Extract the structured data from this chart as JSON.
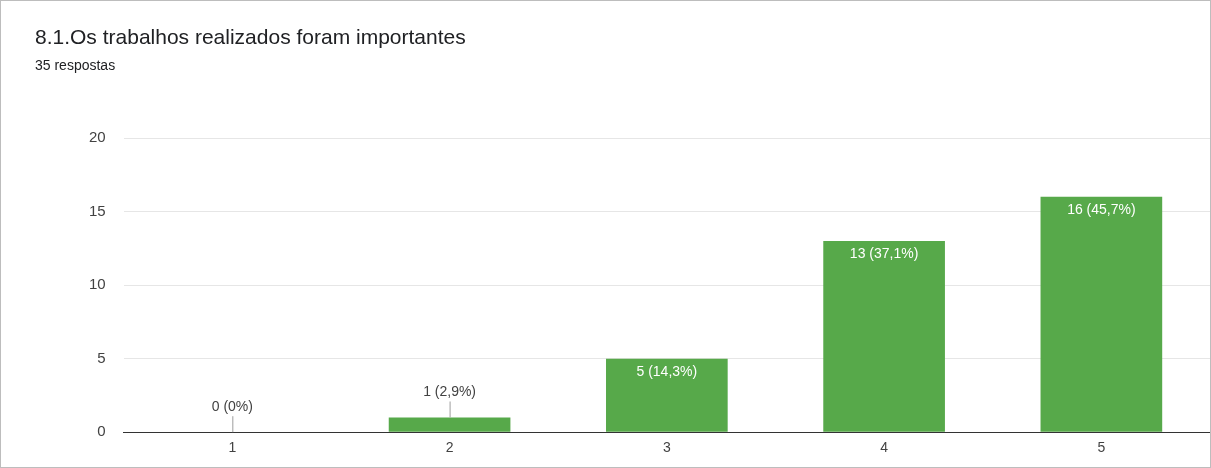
{
  "chart_data": {
    "type": "bar",
    "title": "8.1.Os trabalhos realizados foram importantes",
    "subtitle": "35 respostas",
    "categories": [
      "1",
      "2",
      "3",
      "4",
      "5"
    ],
    "values": [
      0,
      1,
      5,
      13,
      16
    ],
    "value_labels": [
      "0 (0%)",
      "1 (2,9%)",
      "5 (14,3%)",
      "13 (37,1%)",
      "16 (45,7%)"
    ],
    "color": "#57a94a",
    "ylim": [
      0,
      20
    ],
    "yticks": [
      0,
      5,
      10,
      15,
      20
    ],
    "grid": "y"
  }
}
